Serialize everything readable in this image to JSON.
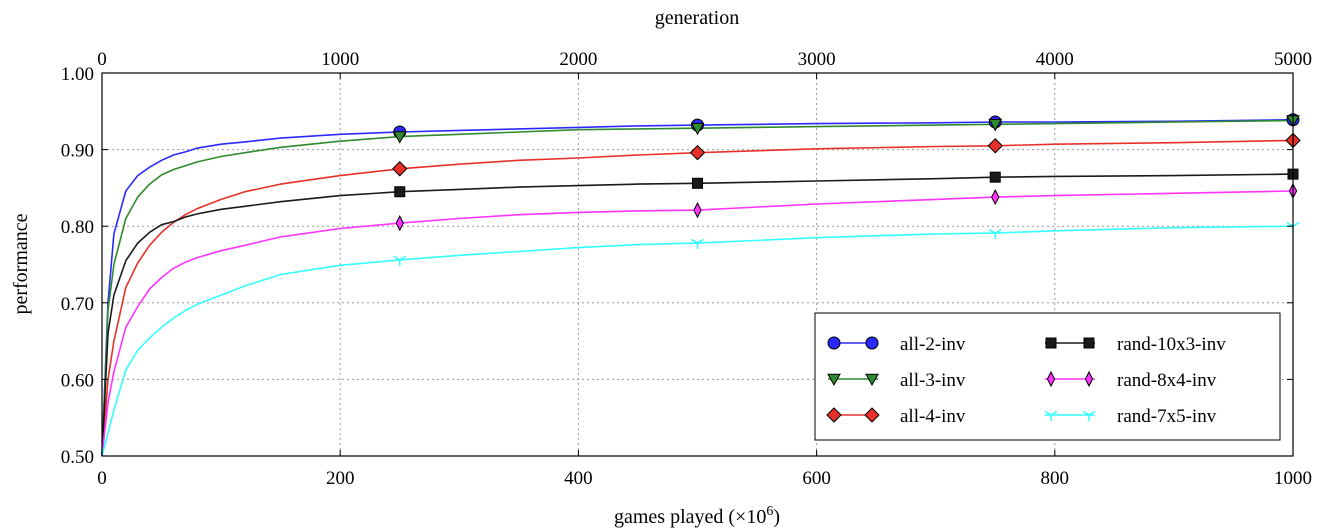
{
  "chart_data": {
    "type": "line",
    "xlabel": "games played (×10",
    "xlabel_exponent": "6",
    "xlabel_suffix": ")",
    "top_xlabel": "generation",
    "ylabel": "performance",
    "xlim": [
      0,
      1000
    ],
    "ylim": [
      0.5,
      1.0
    ],
    "top_xlim": [
      0,
      5000
    ],
    "x_ticks": [
      0,
      200,
      400,
      600,
      800,
      1000
    ],
    "x_tick_labels": [
      "0",
      "200",
      "400",
      "600",
      "800",
      "1000"
    ],
    "top_x_ticks": [
      0,
      1000,
      2000,
      3000,
      4000,
      5000
    ],
    "top_x_tick_labels": [
      "0",
      "1000",
      "2000",
      "3000",
      "4000",
      "5000"
    ],
    "y_ticks": [
      0.5,
      0.6,
      0.7,
      0.8,
      0.9,
      1.0
    ],
    "y_tick_labels": [
      "0.50",
      "0.60",
      "0.70",
      "0.80",
      "0.90",
      "1.00"
    ],
    "grid": true,
    "legend_position": "lower-right",
    "legend_columns": 2,
    "series": [
      {
        "name": "all-2-inv",
        "color": "#2a2aff",
        "marker": "circle",
        "x": [
          0,
          5,
          10,
          20,
          30,
          40,
          50,
          60,
          70,
          80,
          100,
          120,
          150,
          200,
          250,
          300,
          350,
          400,
          450,
          500,
          600,
          700,
          750,
          800,
          900,
          1000
        ],
        "y": [
          0.5,
          0.7,
          0.79,
          0.846,
          0.866,
          0.877,
          0.886,
          0.893,
          0.897,
          0.902,
          0.907,
          0.91,
          0.915,
          0.92,
          0.923,
          0.925,
          0.927,
          0.929,
          0.931,
          0.932,
          0.934,
          0.935,
          0.936,
          0.936,
          0.937,
          0.939
        ],
        "marker_x": [
          250,
          500,
          750,
          1000
        ],
        "marker_y": [
          0.923,
          0.932,
          0.936,
          0.939
        ]
      },
      {
        "name": "all-3-inv",
        "color": "#2e8b2e",
        "marker": "triangle-down",
        "x": [
          0,
          5,
          10,
          20,
          30,
          40,
          50,
          60,
          70,
          80,
          100,
          120,
          150,
          200,
          250,
          300,
          350,
          400,
          450,
          500,
          600,
          700,
          750,
          800,
          900,
          1000
        ],
        "y": [
          0.5,
          0.69,
          0.75,
          0.81,
          0.838,
          0.855,
          0.867,
          0.874,
          0.879,
          0.884,
          0.891,
          0.896,
          0.903,
          0.911,
          0.917,
          0.92,
          0.923,
          0.926,
          0.927,
          0.928,
          0.93,
          0.932,
          0.933,
          0.934,
          0.936,
          0.938
        ],
        "marker_x": [
          250,
          500,
          750,
          1000
        ],
        "marker_y": [
          0.917,
          0.928,
          0.933,
          0.938
        ]
      },
      {
        "name": "all-4-inv",
        "color": "#e8302a",
        "marker": "diamond",
        "x": [
          0,
          5,
          10,
          20,
          30,
          40,
          50,
          60,
          70,
          80,
          100,
          120,
          150,
          200,
          250,
          300,
          350,
          400,
          450,
          500,
          600,
          700,
          750,
          800,
          900,
          1000
        ],
        "y": [
          0.5,
          0.6,
          0.65,
          0.72,
          0.752,
          0.775,
          0.792,
          0.805,
          0.815,
          0.823,
          0.835,
          0.845,
          0.855,
          0.866,
          0.875,
          0.881,
          0.886,
          0.889,
          0.893,
          0.896,
          0.901,
          0.904,
          0.905,
          0.907,
          0.909,
          0.912
        ],
        "marker_x": [
          250,
          500,
          750,
          1000
        ],
        "marker_y": [
          0.875,
          0.896,
          0.905,
          0.912
        ]
      },
      {
        "name": "rand-10x3-inv",
        "color": "#1a1a1a",
        "marker": "square",
        "x": [
          0,
          5,
          10,
          20,
          30,
          40,
          50,
          60,
          70,
          80,
          100,
          120,
          150,
          200,
          250,
          300,
          350,
          400,
          450,
          500,
          600,
          700,
          750,
          800,
          900,
          1000
        ],
        "y": [
          0.5,
          0.66,
          0.71,
          0.755,
          0.778,
          0.792,
          0.802,
          0.806,
          0.812,
          0.816,
          0.822,
          0.826,
          0.832,
          0.84,
          0.845,
          0.848,
          0.851,
          0.853,
          0.855,
          0.856,
          0.859,
          0.862,
          0.864,
          0.865,
          0.866,
          0.868
        ],
        "marker_x": [
          250,
          500,
          750,
          1000
        ],
        "marker_y": [
          0.845,
          0.856,
          0.864,
          0.868
        ]
      },
      {
        "name": "rand-8x4-inv",
        "color": "#ff33ff",
        "marker": "thin-diamond",
        "x": [
          0,
          5,
          10,
          20,
          30,
          40,
          50,
          60,
          70,
          80,
          100,
          120,
          150,
          200,
          250,
          300,
          350,
          400,
          450,
          500,
          600,
          700,
          750,
          800,
          900,
          1000
        ],
        "y": [
          0.5,
          0.57,
          0.61,
          0.668,
          0.695,
          0.718,
          0.733,
          0.745,
          0.753,
          0.759,
          0.768,
          0.775,
          0.786,
          0.797,
          0.804,
          0.81,
          0.815,
          0.818,
          0.82,
          0.821,
          0.829,
          0.835,
          0.838,
          0.84,
          0.843,
          0.846
        ],
        "marker_x": [
          250,
          500,
          750,
          1000
        ],
        "marker_y": [
          0.804,
          0.821,
          0.838,
          0.846
        ]
      },
      {
        "name": "rand-7x5-inv",
        "color": "#33ffff",
        "marker": "tri-down",
        "x": [
          0,
          5,
          10,
          20,
          30,
          40,
          50,
          60,
          70,
          80,
          100,
          120,
          150,
          200,
          250,
          300,
          350,
          400,
          450,
          500,
          600,
          700,
          750,
          800,
          900,
          1000
        ],
        "y": [
          0.5,
          0.53,
          0.56,
          0.612,
          0.638,
          0.654,
          0.668,
          0.68,
          0.69,
          0.698,
          0.71,
          0.722,
          0.737,
          0.749,
          0.756,
          0.762,
          0.767,
          0.772,
          0.776,
          0.778,
          0.785,
          0.79,
          0.791,
          0.794,
          0.798,
          0.8
        ],
        "marker_x": [
          250,
          500,
          750,
          1000
        ],
        "marker_y": [
          0.756,
          0.778,
          0.791,
          0.8
        ]
      }
    ]
  }
}
